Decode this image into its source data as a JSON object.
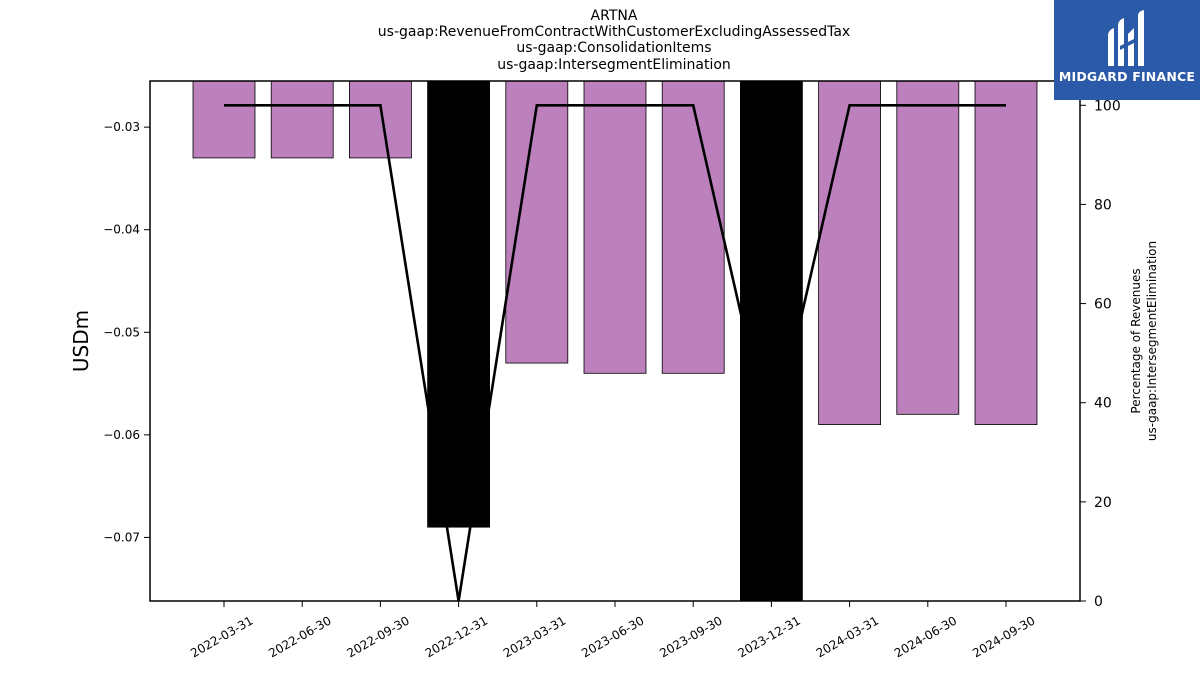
{
  "chart_data": {
    "type": "bar",
    "title_lines": [
      "ARTNA",
      "us-gaap:RevenueFromContractWithCustomerExcludingAssessedTax",
      "us-gaap:ConsolidationItems",
      "us-gaap:IntersegmentElimination"
    ],
    "categories": [
      "2022-03-31",
      "2022-06-30",
      "2022-09-30",
      "2022-12-31",
      "2023-03-31",
      "2023-06-30",
      "2023-09-30",
      "2023-12-31",
      "2024-03-31",
      "2024-06-30",
      "2024-09-30"
    ],
    "series": [
      {
        "axis": "left",
        "kind": "bar",
        "values": [
          -0.033,
          -0.033,
          -0.033,
          -0.069,
          -0.053,
          -0.054,
          -0.054,
          -0.077,
          -0.059,
          -0.058,
          -0.059
        ],
        "highlight": [
          false,
          false,
          false,
          true,
          false,
          false,
          false,
          true,
          false,
          false,
          false
        ]
      },
      {
        "axis": "right",
        "kind": "line",
        "values": [
          100,
          100,
          100,
          0,
          100,
          100,
          100,
          31,
          100,
          100,
          100
        ]
      }
    ],
    "ylabel": "USDm",
    "y2label_lines": [
      "Percentage of Revenues",
      "us-gaap:IntersegmentElimination"
    ],
    "ylim": [
      -0.0762,
      -0.0255
    ],
    "y2lim": [
      0,
      104.9
    ],
    "yticks": [
      -0.07,
      -0.06,
      -0.05,
      -0.04,
      -0.03
    ],
    "ytick_labels": [
      "−0.07",
      "−0.06",
      "−0.05",
      "−0.04",
      "−0.03"
    ],
    "y2ticks": [
      0,
      20,
      40,
      60,
      80,
      100
    ],
    "y2tick_labels": [
      "0",
      "20",
      "40",
      "60",
      "80",
      "100"
    ],
    "grid": false,
    "colors": {
      "bar": "#bc80bd",
      "highlight_bar": "#000000",
      "line": "#000000"
    }
  },
  "logo": {
    "text": "MIDGARD FINANCE",
    "icon": "midgard-logo-icon",
    "color": "#2b5aa8"
  }
}
